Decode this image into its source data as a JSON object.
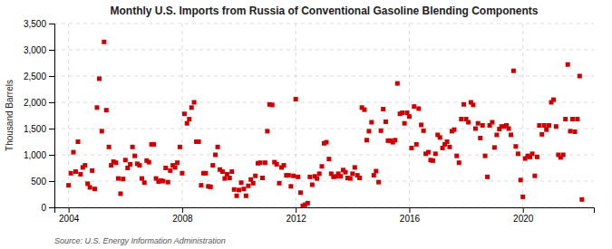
{
  "chart_data": {
    "type": "scatter",
    "title": "Monthly U.S. Imports from Russia of Conventional Gasoline Blending Components",
    "ylabel": "Thousand Barrels",
    "annotations": [
      "Source: U.S. Energy Information Administration"
    ],
    "color": "#CC0000",
    "marker": "square",
    "grid": true,
    "xlim": [
      2003.5,
      2022.5
    ],
    "xticks": [
      2004,
      2008,
      2012,
      2016,
      2020
    ],
    "ylim": [
      0,
      3500
    ],
    "yticks": [
      0,
      500,
      {
        "value": 1000,
        "label": "1,000"
      },
      {
        "value": 1500,
        "label": "1,500"
      },
      {
        "value": 2000,
        "label": "2,000"
      },
      {
        "value": 2500,
        "label": "2,500"
      },
      {
        "value": 3000,
        "label": "3,000"
      },
      {
        "value": 3500,
        "label": "3,500"
      }
    ],
    "x": [
      2004.0,
      2004.08,
      2004.17,
      2004.25,
      2004.33,
      2004.42,
      2004.5,
      2004.58,
      2004.67,
      2004.75,
      2004.83,
      2004.92,
      2005.0,
      2005.08,
      2005.17,
      2005.25,
      2005.33,
      2005.42,
      2005.5,
      2005.58,
      2005.67,
      2005.75,
      2005.83,
      2005.92,
      2006.0,
      2006.08,
      2006.17,
      2006.25,
      2006.33,
      2006.42,
      2006.5,
      2006.58,
      2006.67,
      2006.75,
      2006.83,
      2006.92,
      2007.0,
      2007.08,
      2007.17,
      2007.25,
      2007.33,
      2007.42,
      2007.5,
      2007.58,
      2007.67,
      2007.75,
      2007.83,
      2007.92,
      2008.0,
      2008.08,
      2008.17,
      2008.25,
      2008.33,
      2008.42,
      2008.5,
      2008.58,
      2008.67,
      2008.75,
      2008.83,
      2008.92,
      2009.0,
      2009.08,
      2009.17,
      2009.25,
      2009.33,
      2009.42,
      2009.5,
      2009.58,
      2009.67,
      2009.75,
      2009.83,
      2009.92,
      2010.0,
      2010.08,
      2010.17,
      2010.25,
      2010.33,
      2010.42,
      2010.5,
      2010.58,
      2010.67,
      2010.75,
      2010.83,
      2010.92,
      2011.0,
      2011.08,
      2011.17,
      2011.25,
      2011.33,
      2011.42,
      2011.5,
      2011.58,
      2011.67,
      2011.75,
      2011.83,
      2011.92,
      2012.0,
      2012.08,
      2012.17,
      2012.25,
      2012.33,
      2012.42,
      2012.5,
      2012.58,
      2012.67,
      2012.75,
      2012.83,
      2012.92,
      2013.0,
      2013.08,
      2013.17,
      2013.25,
      2013.33,
      2013.42,
      2013.5,
      2013.58,
      2013.67,
      2013.75,
      2013.83,
      2013.92,
      2014.0,
      2014.08,
      2014.17,
      2014.25,
      2014.33,
      2014.42,
      2014.5,
      2014.58,
      2014.67,
      2014.75,
      2014.83,
      2014.92,
      2015.0,
      2015.08,
      2015.17,
      2015.25,
      2015.33,
      2015.42,
      2015.5,
      2015.58,
      2015.67,
      2015.75,
      2015.83,
      2015.92,
      2016.0,
      2016.08,
      2016.17,
      2016.25,
      2016.33,
      2016.42,
      2016.5,
      2016.58,
      2016.67,
      2016.75,
      2016.83,
      2016.92,
      2017.0,
      2017.08,
      2017.17,
      2017.25,
      2017.33,
      2017.42,
      2017.5,
      2017.58,
      2017.67,
      2017.75,
      2017.83,
      2017.92,
      2018.0,
      2018.08,
      2018.17,
      2018.25,
      2018.33,
      2018.42,
      2018.5,
      2018.58,
      2018.67,
      2018.75,
      2018.83,
      2018.92,
      2019.0,
      2019.08,
      2019.17,
      2019.25,
      2019.33,
      2019.42,
      2019.5,
      2019.58,
      2019.67,
      2019.75,
      2019.83,
      2019.92,
      2020.0,
      2020.08,
      2020.17,
      2020.25,
      2020.33,
      2020.42,
      2020.5,
      2020.58,
      2020.67,
      2020.75,
      2020.83,
      2020.92,
      2021.0,
      2021.08,
      2021.17,
      2021.25,
      2021.33,
      2021.42,
      2021.5,
      2021.58,
      2021.67,
      2021.75,
      2021.83,
      2021.92,
      2022.0,
      2022.08
    ],
    "values": [
      420,
      650,
      1050,
      680,
      1250,
      630,
      760,
      800,
      450,
      380,
      700,
      350,
      1900,
      2450,
      1450,
      3150,
      1850,
      1150,
      800,
      870,
      850,
      550,
      260,
      540,
      900,
      750,
      820,
      1150,
      980,
      830,
      800,
      550,
      470,
      890,
      860,
      1200,
      1200,
      550,
      490,
      510,
      500,
      750,
      480,
      700,
      800,
      760,
      850,
      1150,
      650,
      1780,
      1600,
      1680,
      1900,
      2000,
      1250,
      1250,
      420,
      650,
      650,
      400,
      390,
      800,
      1000,
      1150,
      720,
      680,
      550,
      630,
      560,
      680,
      340,
      220,
      330,
      470,
      350,
      220,
      410,
      530,
      460,
      600,
      840,
      850,
      560,
      850,
      1450,
      1960,
      1950,
      860,
      820,
      460,
      760,
      800,
      610,
      610,
      400,
      600,
      2060,
      580,
      280,
      30,
      50,
      80,
      580,
      430,
      590,
      550,
      640,
      780,
      1220,
      1240,
      920,
      640,
      580,
      590,
      640,
      590,
      710,
      670,
      560,
      550,
      640,
      760,
      610,
      560,
      1900,
      1860,
      1280,
      1450,
      1620,
      610,
      690,
      480,
      1460,
      1870,
      1630,
      1270,
      1270,
      1240,
      1280,
      2360,
      1780,
      1800,
      1600,
      1800,
      1730,
      1130,
      1920,
      1200,
      1880,
      1570,
      1460,
      1020,
      1050,
      900,
      890,
      1020,
      1380,
      1330,
      1130,
      1200,
      1250,
      1150,
      1450,
      1480,
      980,
      850,
      1680,
      1960,
      1680,
      1620,
      2000,
      1950,
      1500,
      1600,
      1320,
      1560,
      980,
      580,
      1560,
      1620,
      1140,
      1380,
      1490,
      1540,
      1540,
      1560,
      1500,
      1380,
      2600,
      1160,
      1020,
      520,
      200,
      930,
      980,
      960,
      1020,
      600,
      960,
      1560,
      1390,
      1560,
      1480,
      1560,
      2000,
      2050,
      1540,
      1000,
      950,
      1000,
      1680,
      2720,
      1450,
      1680,
      1440,
      1680,
      2500,
      150
    ]
  }
}
